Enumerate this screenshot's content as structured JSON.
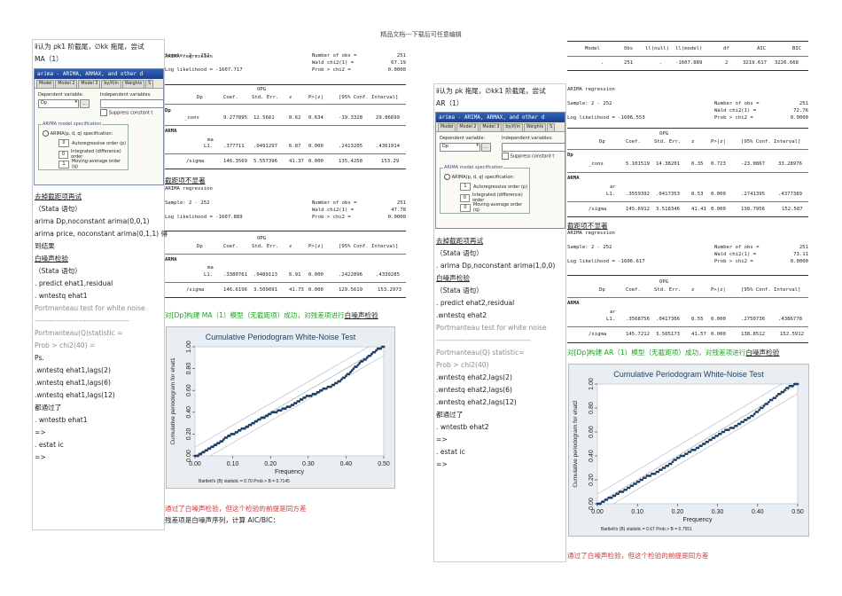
{
  "header": "精品文档---下载后可任意编辑",
  "left": {
    "intro_line1": "ⅱ认为 ρk1 阶截尾，∅kk 拖尾，尝试",
    "intro_line2": "MA（1）",
    "dialog": {
      "title": "arima - ARIMA, ARMAX, and other d",
      "tabs": [
        "Model",
        "Model 2",
        "Model 3",
        "by/if/in",
        "Weights",
        "S"
      ],
      "dep_label": "Dependent variable:",
      "indep_label": "Independent variables:",
      "dep_value": "Dp",
      "suppress": "Suppress constant t",
      "spec_group": "ARIMA model specification",
      "spec_radio": "ARIMA(p, d, q) specification:",
      "p_val": "0",
      "p_label": "Autoregressive order (p)",
      "d_val": "0",
      "d_label": "Integrated (difference) order",
      "q_val": "1",
      "q_label": "Moving-average order (q)"
    },
    "lines": [
      {
        "t": "去掉截距项再试",
        "cls": "ul"
      },
      {
        "t": "（Stata 语句）",
        "cls": ""
      },
      {
        "t": "arima Dp,noconstant arima(0,0,1)",
        "cls": ""
      },
      {
        "t": "arima price, noconstant arima(0,1,1) 得",
        "cls": ""
      },
      {
        "t": "到结果",
        "cls": ""
      },
      {
        "t": "白噪声检验",
        "cls": "ul"
      },
      {
        "t": "（Stata 语句）",
        "cls": ""
      },
      {
        "t": ". predict ehat1,residual",
        "cls": ""
      },
      {
        "t": ". wntestq ehat1",
        "cls": ""
      },
      {
        "t": "Portmanteau test for white noise",
        "cls": "grey"
      },
      {
        "t": "---------------------------------------",
        "cls": "grey"
      },
      {
        "t": "Portmanteau(Q)statistic =",
        "cls": "grey"
      },
      {
        "t": " Prob > chi2(40)    =",
        "cls": "grey"
      },
      {
        "t": "Ps.",
        "cls": ""
      },
      {
        "t": ".wntestq ehat1,lags(2)",
        "cls": ""
      },
      {
        "t": ".wntestq ehat1,lags(6)",
        "cls": ""
      },
      {
        "t": ".wntestq ehat1,lags(12)",
        "cls": ""
      },
      {
        "t": "都通过了",
        "cls": ""
      },
      {
        "t": ". wntestb ehat1",
        "cls": ""
      },
      {
        "t": "=>",
        "cls": ""
      },
      {
        "t": ". estat ic",
        "cls": ""
      },
      {
        "t": "=>",
        "cls": ""
      }
    ]
  },
  "right": {
    "intro_line1": "ⅱ认为 ρk 拖尾，∅kk1 阶截尾，尝试",
    "intro_line2": "AR（1）",
    "dialog": {
      "title": "arima - ARIMA, ARMAX, and other d",
      "tabs": [
        "Model",
        "Model 2",
        "Model 3",
        "by/if/in",
        "Weights",
        "S"
      ],
      "dep_label": "Dependent variable:",
      "indep_label": "Independent variables:",
      "dep_value": "Dp",
      "suppress": "Suppress constant t",
      "spec_group": "ARIMA model specification",
      "spec_radio": "ARIMA(p, d, q) specification:",
      "p_val": "1",
      "p_label": "Autoregressive order (p)",
      "d_val": "0",
      "d_label": "Integrated (difference) order",
      "q_val": "0",
      "q_label": "Moving-average order (q)"
    },
    "lines": [
      {
        "t": "去掉截距项再试",
        "cls": "ul"
      },
      {
        "t": "（Stata 语句）",
        "cls": ""
      },
      {
        "t": ". arima Dp,noconstant arima(1,0,0)",
        "cls": ""
      },
      {
        "t": "白噪声检验",
        "cls": "ul"
      },
      {
        "t": "（Stata 语句）",
        "cls": ""
      },
      {
        "t": ". predict ehat2,residual",
        "cls": ""
      },
      {
        "t": ".wntestq ehat2",
        "cls": ""
      },
      {
        "t": "Portmanteau test for white noise",
        "cls": "grey"
      },
      {
        "t": "---------------------------------------",
        "cls": "grey"
      },
      {
        "t": " Portmanteau(Q) statistic=",
        "cls": "grey"
      },
      {
        "t": " Prob > chi2(40)",
        "cls": "grey"
      },
      {
        "t": ".wntestq ehat2,lags(2)",
        "cls": ""
      },
      {
        "t": ".wntestq ehat2,lags(6)",
        "cls": ""
      },
      {
        "t": ".wntestq ehat2,lags(12)",
        "cls": ""
      },
      {
        "t": "都通过了",
        "cls": ""
      },
      {
        "t": ". wntestb ehat2",
        "cls": ""
      },
      {
        "t": "=>",
        "cls": ""
      },
      {
        "t": ". estat ic",
        "cls": ""
      },
      {
        "t": "=>",
        "cls": ""
      }
    ]
  },
  "ma_output1": {
    "title": "ARIMA regression",
    "sample": "Sample:  2 - 252",
    "nobs_label": "Number of obs    =",
    "nobs": "251",
    "wald_label": "Wald chi2(1)     =",
    "wald": "67.19",
    "ll_label": "Log likelihood = -1607.717",
    "prob_label": "Prob > chi2      =",
    "prob": "0.0000",
    "opg": "OPG",
    "headers": [
      "Dp",
      "Coef.",
      "Std. Err.",
      "z",
      "P>|z|",
      "[95% Conf. Interval]"
    ],
    "sec1": "Dp",
    "rows": [
      [
        "_cons",
        "9.277895",
        "12.5661",
        "0.62",
        "0.634",
        "-19.3328",
        "29.86699"
      ],
      [
        "ma L1.",
        ".377711",
        ".0491297",
        "6.87",
        "0.000",
        ".2413205",
        ".4361914"
      ],
      [
        "/sigma",
        "146.3569",
        "5.557396",
        "41.37",
        "0.000",
        "135.4258",
        "153.29"
      ]
    ],
    "sec2": "ARMA",
    "ma": "ma",
    "l1": "L1."
  },
  "ma_caption": "截距项不显著",
  "ma_output2": {
    "title": "ARIMA regression",
    "sample": "Sample:  2 - 252",
    "nobs_label": "Number of obs    =",
    "nobs": "251",
    "wald_label": "Wald chi2(1)     =",
    "wald": "47.78",
    "ll_label": "Log likelihood = -1607.889",
    "prob_label": "Prob > chi2      =",
    "prob": "0.0000",
    "opg": "OPG",
    "headers": [
      "Dp",
      "Coef.",
      "Std. Err.",
      "z",
      "P>|z|",
      "[95% Conf. Interval]"
    ],
    "sec2": "ARMA",
    "ma": "ma",
    "l1": "L1.",
    "rows": [
      [
        "L1.",
        ".3380761",
        ".0489113",
        "6.91",
        "0.000",
        ".2422896",
        ".4339285"
      ],
      [
        "/sigma",
        "146.6196",
        "3.509091",
        "41.73",
        "0.000",
        "129.5619",
        "153.2973"
      ]
    ]
  },
  "ma_conclusion_green": "对[Dp]构建 MA（1）模型（无截距项）成功，对残差项进行",
  "ma_conclusion_link": "白噪声检验",
  "chart1": {
    "title": "Cumulative Periodogram White-Noise Test",
    "ylabel": "Cumulative periodogram for ehat1",
    "xlabel": "Frequency",
    "xticks": [
      "0.00",
      "0.10",
      "0.20",
      "0.30",
      "0.40",
      "0.50"
    ],
    "yticks": [
      "0.00",
      "0.20",
      "0.40",
      "0.60",
      "0.80",
      "1.00"
    ],
    "note": "Bartlett's (B) statistic =     0.70   Prob > B = 0.7145"
  },
  "ma_red": "通过了白噪声检验，但这个检验的前提是同方差",
  "ma_last": "残差项是白噪声序列，计算 AIC/BIC：",
  "ic_table": {
    "headers": [
      "Model",
      "Obs",
      "ll(null)",
      "ll(model)",
      "df",
      "AIC",
      "BIC"
    ],
    "row": [
      ".",
      "251",
      ".",
      "-1607.889",
      "2",
      "3219.617",
      "3226.668"
    ]
  },
  "ar_output1": {
    "title": "ARIMA regression",
    "sample": "Sample:  2 - 252",
    "nobs_label": "Number of obs    =",
    "nobs": "251",
    "wald_label": "Wald chi2(1)     =",
    "wald": "72.76",
    "ll_label": "Log likelihood = -1606.553",
    "prob_label": "Prob > chi2      =",
    "prob": "0.0000",
    "opg": "OPG",
    "headers": [
      "Dp",
      "Coef.",
      "Std. Err.",
      "z",
      "P>|z|",
      "[95% Conf. Interval]"
    ],
    "sec1": "Dp",
    "sec2": "ARMA",
    "ar": "ar",
    "rows": [
      [
        "_cons",
        "5.101519",
        "14.38201",
        "0.35",
        "0.723",
        "-23.0867",
        "33.28976"
      ],
      [
        "L1.",
        ".3559392",
        ".0417353",
        "8.53",
        "0.000",
        ".2741395",
        ".4377389"
      ],
      [
        "/sigma",
        "145.6912",
        "3.518346",
        "41.41",
        "0.000",
        "138.7956",
        "152.587"
      ]
    ]
  },
  "ar_caption": "截距项不显著",
  "ar_output2": {
    "title": "ARIMA regression",
    "sample": "Sample:  2 - 252",
    "nobs_label": "Number of obs    =",
    "nobs": "251",
    "wald_label": "Wald chi2(1)     =",
    "wald": "73.11",
    "ll_label": "Log likelihood = -1606.617",
    "prob_label": "Prob > chi2      =",
    "prob": "0.0000",
    "opg": "OPG",
    "headers": [
      "Dp",
      "Coef.",
      "Std. Err.",
      "z",
      "P>|z|",
      "[95% Conf. Interval]"
    ],
    "sec2": "ARMA",
    "ar": "ar",
    "rows": [
      [
        "L1.",
        ".3568756",
        ".0417366",
        "8.55",
        "0.000",
        ".2750736",
        ".4386778"
      ],
      [
        "/sigma",
        "145.7212",
        "3.505173",
        "41.57",
        "0.000",
        "138.8512",
        "152.5912"
      ]
    ]
  },
  "ar_conclusion_green": "对[Dp]构建 AR（1）模型（无截距项）成功，对残差项进行",
  "ar_conclusion_link": "白噪声检验",
  "chart2": {
    "title": "Cumulative Periodogram White-Noise Test",
    "ylabel": "Cumulative periodogram for ehat2",
    "xlabel": "Frequency",
    "xticks": [
      "0.00",
      "0.10",
      "0.20",
      "0.30",
      "0.40",
      "0.50"
    ],
    "yticks": [
      "0.00",
      "0.20",
      "0.40",
      "0.60",
      "0.80",
      "1.00"
    ],
    "note": "Bartlett's (B) statistic =     0.67   Prob > B = 0.7551"
  },
  "ar_red": "通过了白噪声检验，但这个检验的前提是同方差",
  "chart_data": [
    {
      "type": "scatter",
      "title": "Cumulative Periodogram White-Noise Test",
      "xlabel": "Frequency",
      "ylabel": "Cumulative periodogram for ehat1",
      "xlim": [
        0,
        0.5
      ],
      "ylim": [
        0,
        1
      ],
      "bartlett_B": 0.7,
      "prob_B": 0.7145,
      "x": [
        0.004,
        0.02,
        0.04,
        0.06,
        0.08,
        0.1,
        0.12,
        0.14,
        0.16,
        0.18,
        0.2,
        0.22,
        0.24,
        0.26,
        0.28,
        0.3,
        0.32,
        0.34,
        0.36,
        0.38,
        0.4,
        0.42,
        0.44,
        0.46,
        0.48,
        0.5
      ],
      "y": [
        0.0,
        0.03,
        0.07,
        0.11,
        0.16,
        0.2,
        0.24,
        0.27,
        0.31,
        0.35,
        0.39,
        0.41,
        0.44,
        0.47,
        0.51,
        0.55,
        0.57,
        0.61,
        0.64,
        0.68,
        0.73,
        0.8,
        0.86,
        0.91,
        0.97,
        1.0
      ]
    },
    {
      "type": "scatter",
      "title": "Cumulative Periodogram White-Noise Test",
      "xlabel": "Frequency",
      "ylabel": "Cumulative periodogram for ehat2",
      "xlim": [
        0,
        0.5
      ],
      "ylim": [
        0,
        1
      ],
      "bartlett_B": 0.67,
      "prob_B": 0.7551,
      "x": [
        0.004,
        0.02,
        0.04,
        0.06,
        0.08,
        0.1,
        0.12,
        0.14,
        0.16,
        0.18,
        0.2,
        0.22,
        0.24,
        0.26,
        0.28,
        0.3,
        0.32,
        0.34,
        0.36,
        0.38,
        0.4,
        0.42,
        0.44,
        0.46,
        0.48,
        0.5
      ],
      "y": [
        0.0,
        0.03,
        0.06,
        0.1,
        0.14,
        0.18,
        0.22,
        0.25,
        0.29,
        0.33,
        0.38,
        0.41,
        0.45,
        0.49,
        0.53,
        0.57,
        0.61,
        0.64,
        0.68,
        0.72,
        0.77,
        0.83,
        0.88,
        0.93,
        0.98,
        1.0
      ]
    }
  ]
}
